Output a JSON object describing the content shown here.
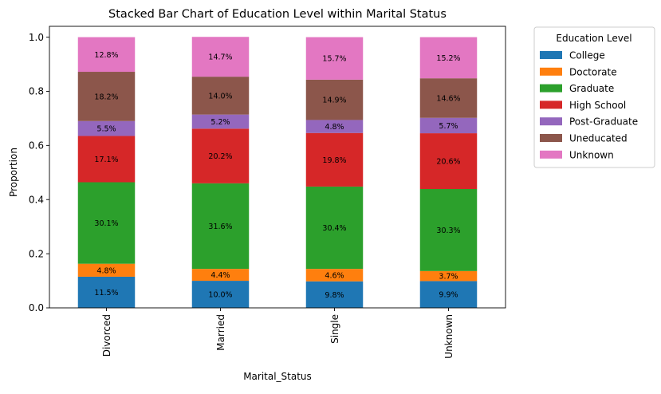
{
  "chart_data": {
    "type": "bar",
    "stacked": true,
    "title": "Stacked Bar Chart of Education Level within Marital Status",
    "xlabel": "Marital_Status",
    "ylabel": "Proportion",
    "ylim": [
      0,
      1.04
    ],
    "yticks": [
      "0.0",
      "0.2",
      "0.4",
      "0.6",
      "0.8",
      "1.0"
    ],
    "categories": [
      "Divorced",
      "Married",
      "Single",
      "Unknown"
    ],
    "legend": {
      "title": "Education Level",
      "placement": "outside-right"
    },
    "series": [
      {
        "name": "College",
        "color": "#1f77b4",
        "values": [
          0.115,
          0.1,
          0.098,
          0.099
        ],
        "labels": [
          "11.5%",
          "10.0%",
          "9.8%",
          "9.9%"
        ]
      },
      {
        "name": "Doctorate",
        "color": "#ff7f0e",
        "values": [
          0.048,
          0.044,
          0.046,
          0.037
        ],
        "labels": [
          "4.8%",
          "4.4%",
          "4.6%",
          "3.7%"
        ]
      },
      {
        "name": "Graduate",
        "color": "#2ca02c",
        "values": [
          0.301,
          0.316,
          0.304,
          0.303
        ],
        "labels": [
          "30.1%",
          "31.6%",
          "30.4%",
          "30.3%"
        ]
      },
      {
        "name": "High School",
        "color": "#d62728",
        "values": [
          0.171,
          0.202,
          0.198,
          0.206
        ],
        "labels": [
          "17.1%",
          "20.2%",
          "19.8%",
          "20.6%"
        ]
      },
      {
        "name": "Post-Graduate",
        "color": "#9467bd",
        "values": [
          0.055,
          0.052,
          0.048,
          0.057
        ],
        "labels": [
          "5.5%",
          "5.2%",
          "4.8%",
          "5.7%"
        ]
      },
      {
        "name": "Uneducated",
        "color": "#8c564b",
        "values": [
          0.182,
          0.14,
          0.149,
          0.146
        ],
        "labels": [
          "18.2%",
          "14.0%",
          "14.9%",
          "14.6%"
        ]
      },
      {
        "name": "Unknown",
        "color": "#e377c2",
        "values": [
          0.128,
          0.147,
          0.157,
          0.152
        ],
        "labels": [
          "12.8%",
          "14.7%",
          "15.7%",
          "15.2%"
        ]
      }
    ]
  }
}
